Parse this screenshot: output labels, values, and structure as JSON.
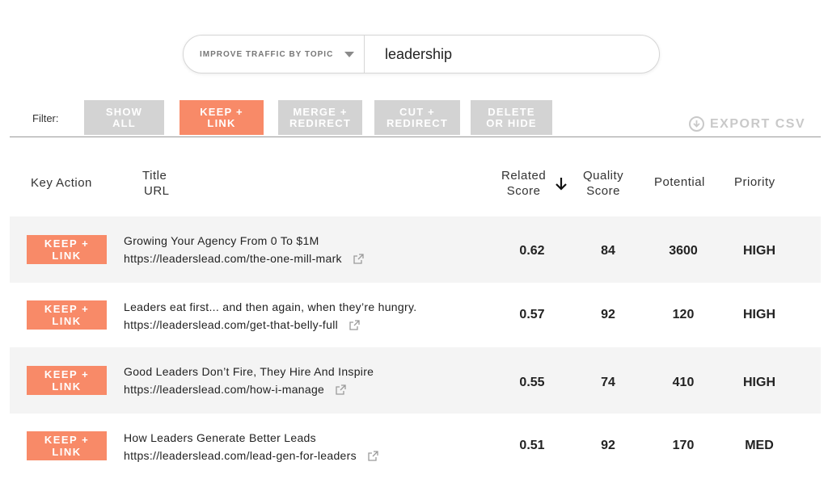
{
  "search": {
    "topic_label": "IMPROVE TRAFFIC BY TOPIC",
    "query": "leadership"
  },
  "filter": {
    "label": "Filter:",
    "buttons": [
      {
        "label": "SHOW\nALL",
        "active": false
      },
      {
        "label": "KEEP +\nLINK",
        "active": true
      },
      {
        "label": "MERGE +\nREDIRECT",
        "active": false
      },
      {
        "label": "CUT +\nREDIRECT",
        "active": false
      },
      {
        "label": "DELETE\nOR HIDE",
        "active": false
      }
    ]
  },
  "export": {
    "label": "EXPORT CSV",
    "icon": "download-circle-icon"
  },
  "table": {
    "headers": {
      "key_action": "Key Action",
      "title": "Title",
      "url": "URL",
      "related": "Related\nScore",
      "quality": "Quality\nScore",
      "potential": "Potential",
      "priority": "Priority"
    },
    "sort_icon": "arrow-down-icon",
    "rows": [
      {
        "action": "KEEP +\nLINK",
        "title": "Growing Your Agency From 0 To $1M",
        "url": "https://leaderslead.com/the-one-mill-mark",
        "related": "0.62",
        "quality": "84",
        "potential": "3600",
        "priority": "HIGH"
      },
      {
        "action": "KEEP +\nLINK",
        "title": "Leaders eat first... and then again, when they’re hungry.",
        "url": "https://leaderslead.com/get-that-belly-full",
        "related": "0.57",
        "quality": "92",
        "potential": "120",
        "priority": "HIGH"
      },
      {
        "action": "KEEP +\nLINK",
        "title": "Good Leaders Don’t Fire, They Hire And Inspire",
        "url": "https://leaderslead.com/how-i-manage",
        "related": "0.55",
        "quality": "74",
        "potential": "410",
        "priority": "HIGH"
      },
      {
        "action": "KEEP +\nLINK",
        "title": "How Leaders Generate Better Leads",
        "url": "https://leaderslead.com/lead-gen-for-leaders",
        "related": "0.51",
        "quality": "92",
        "potential": "170",
        "priority": "MED"
      }
    ]
  },
  "colors": {
    "accent": "#f88a68",
    "inactive": "#d3d3d3",
    "row_shade": "#f4f4f4"
  }
}
